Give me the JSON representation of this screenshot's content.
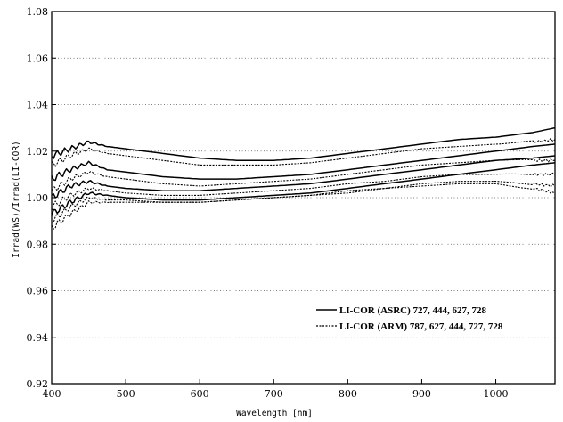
{
  "chart_data": {
    "type": "line",
    "title": "",
    "xlabel": "Wavelength [nm]",
    "ylabel": "Irrad(WS)/Irrad(LI-COR)",
    "xlim": [
      400,
      1080
    ],
    "ylim": [
      0.92,
      1.08
    ],
    "x_ticks": [
      400,
      500,
      600,
      700,
      800,
      900,
      1000
    ],
    "y_ticks": [
      0.92,
      0.94,
      0.96,
      0.98,
      1.0,
      1.02,
      1.04,
      1.06,
      1.08
    ],
    "y_tick_labels": [
      "0.92",
      "0.94",
      "0.96",
      "0.98",
      "1.00",
      "1.02",
      "1.04",
      "1.06",
      "1.08"
    ],
    "grid": "horizontal-dotted",
    "legend_position": "bottom-right",
    "x": [
      400,
      425,
      450,
      475,
      500,
      550,
      600,
      650,
      700,
      750,
      800,
      850,
      900,
      950,
      1000,
      1050,
      1080
    ],
    "series": [
      {
        "name": "LI-COR (ASRC) 727, 444, 627, 728",
        "style": "solid",
        "lines": [
          [
            1.018,
            1.021,
            1.024,
            1.022,
            1.021,
            1.019,
            1.017,
            1.016,
            1.016,
            1.017,
            1.019,
            1.021,
            1.023,
            1.025,
            1.026,
            1.028,
            1.03
          ],
          [
            1.008,
            1.012,
            1.015,
            1.012,
            1.011,
            1.009,
            1.008,
            1.008,
            1.009,
            1.01,
            1.012,
            1.014,
            1.016,
            1.018,
            1.02,
            1.022,
            1.023
          ],
          [
            1.0,
            1.005,
            1.007,
            1.005,
            1.004,
            1.003,
            1.003,
            1.004,
            1.005,
            1.006,
            1.008,
            1.01,
            1.012,
            1.014,
            1.016,
            1.017,
            1.018
          ],
          [
            0.993,
            0.998,
            1.002,
            1.001,
            1.0,
            0.999,
            0.999,
            1.0,
            1.001,
            1.002,
            1.004,
            1.006,
            1.008,
            1.01,
            1.012,
            1.014,
            1.015
          ]
        ]
      },
      {
        "name": "LI-COR (ARM) 787, 627, 444, 727, 728",
        "style": "dotted",
        "lines": [
          [
            1.014,
            1.018,
            1.021,
            1.019,
            1.018,
            1.016,
            1.014,
            1.014,
            1.014,
            1.015,
            1.017,
            1.019,
            1.021,
            1.022,
            1.023,
            1.024,
            1.025
          ],
          [
            1.003,
            1.008,
            1.011,
            1.009,
            1.008,
            1.006,
            1.005,
            1.006,
            1.007,
            1.008,
            1.01,
            1.012,
            1.014,
            1.015,
            1.016,
            1.016,
            1.016
          ],
          [
            0.996,
            1.001,
            1.004,
            1.003,
            1.002,
            1.001,
            1.001,
            1.002,
            1.003,
            1.004,
            1.006,
            1.007,
            1.009,
            1.01,
            1.01,
            1.01,
            1.01
          ],
          [
            0.99,
            0.996,
            1.0,
            0.999,
            0.999,
            0.998,
            0.998,
            0.999,
            1.0,
            1.001,
            1.003,
            1.004,
            1.006,
            1.007,
            1.007,
            1.006,
            1.005
          ],
          [
            0.987,
            0.993,
            0.998,
            0.998,
            0.998,
            0.998,
            0.998,
            0.999,
            1.0,
            1.001,
            1.002,
            1.004,
            1.005,
            1.006,
            1.006,
            1.004,
            1.002
          ]
        ]
      }
    ]
  }
}
